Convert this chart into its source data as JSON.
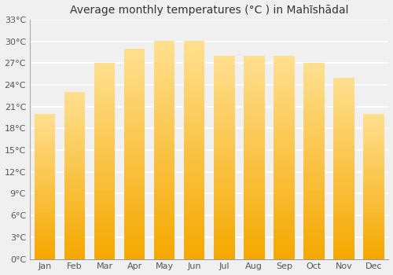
{
  "title": "Average monthly temperatures (°C ) in Mahīshādal",
  "months": [
    "Jan",
    "Feb",
    "Mar",
    "Apr",
    "May",
    "Jun",
    "Jul",
    "Aug",
    "Sep",
    "Oct",
    "Nov",
    "Dec"
  ],
  "values": [
    20,
    23,
    27,
    29,
    30,
    30,
    28,
    28,
    28,
    27,
    25,
    20
  ],
  "ylim": [
    0,
    33
  ],
  "yticks": [
    0,
    3,
    6,
    9,
    12,
    15,
    18,
    21,
    24,
    27,
    30,
    33
  ],
  "bar_color_bottom": "#F5A800",
  "bar_color_top": "#FFE090",
  "background_color": "#F0F0F0",
  "grid_color": "#ffffff",
  "title_fontsize": 10,
  "tick_fontsize": 8,
  "title_color": "#333333",
  "tick_color": "#555555"
}
